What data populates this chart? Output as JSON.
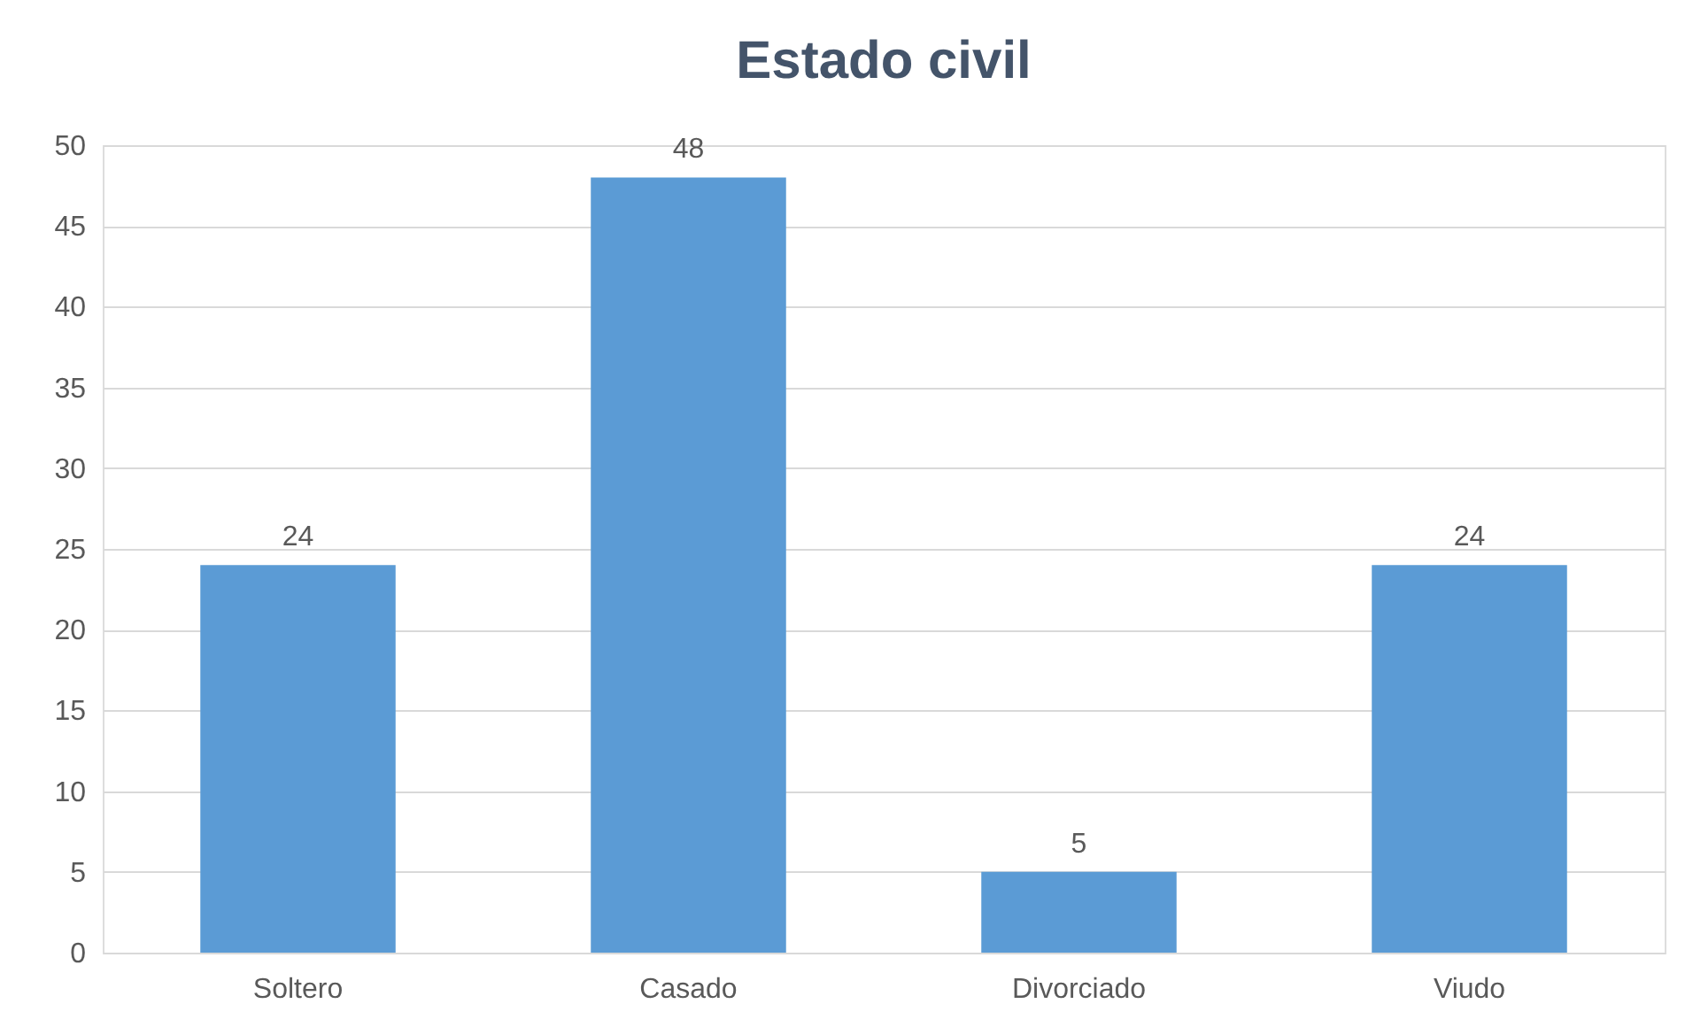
{
  "chart_data": {
    "type": "bar",
    "title": "Estado civil",
    "categories": [
      "Soltero",
      "Casado",
      "Divorciado",
      "Viudo"
    ],
    "values": [
      24,
      48,
      5,
      24
    ],
    "color": "#5b9bd5",
    "ylim": [
      0,
      50
    ],
    "yticks": [
      0,
      5,
      10,
      15,
      20,
      25,
      30,
      35,
      40,
      45,
      50
    ],
    "grid": "y",
    "data_labels": true
  }
}
